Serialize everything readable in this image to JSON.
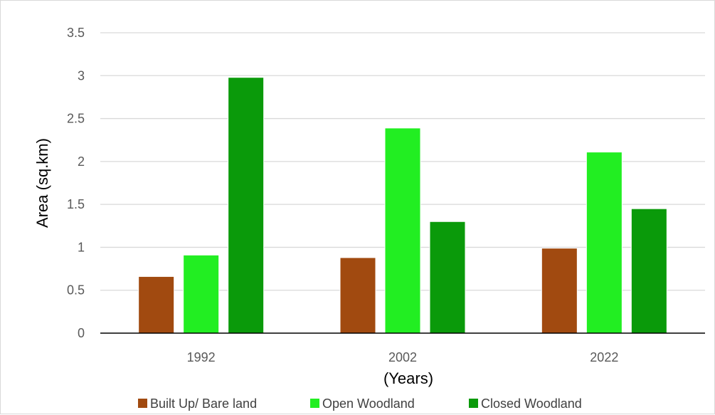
{
  "chart_data": {
    "type": "bar",
    "categories": [
      "1992",
      "2002",
      "2022"
    ],
    "series": [
      {
        "name": "Built Up/ Bare land",
        "values": [
          0.66,
          0.88,
          0.99
        ],
        "color": "#a14a10"
      },
      {
        "name": "Open Woodland",
        "values": [
          0.91,
          2.39,
          2.11
        ],
        "color": "#22ee22"
      },
      {
        "name": "Closed Woodland",
        "values": [
          2.98,
          1.3,
          1.45
        ],
        "color": "#0a9a0a"
      }
    ],
    "title": "",
    "xlabel": "(Years)",
    "ylabel": "Area (sq.km)",
    "ylim": [
      0,
      3.5
    ],
    "yticks": [
      "0",
      "0.5",
      "1",
      "1.5",
      "2",
      "2.5",
      "3",
      "3.5"
    ],
    "grid": true,
    "legend": "bottom"
  }
}
